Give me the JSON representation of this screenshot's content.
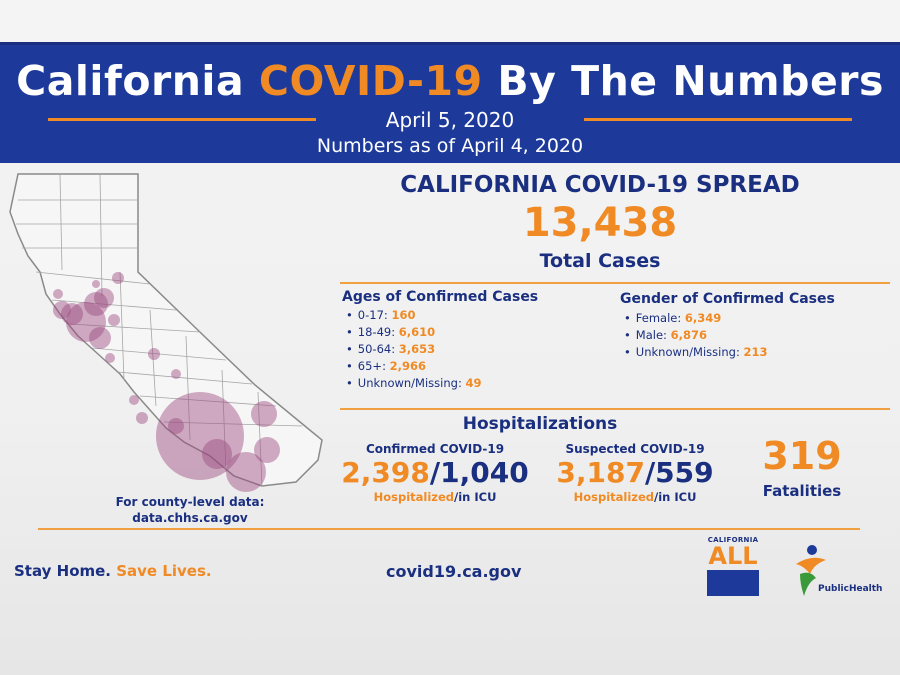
{
  "header": {
    "title_before": "California ",
    "title_accent": "COVID-19",
    "title_after": " By The Numbers",
    "date": "April 5, 2020",
    "as_of": "Numbers as of April 4, 2020"
  },
  "spread": {
    "title": "CALIFORNIA COVID-19 SPREAD",
    "total": "13,438",
    "total_label": "Total Cases"
  },
  "ages": {
    "heading": "Ages of Confirmed Cases",
    "items": [
      {
        "label": "0-17: ",
        "value": "160"
      },
      {
        "label": "18-49: ",
        "value": "6,610"
      },
      {
        "label": "50-64: ",
        "value": "3,653"
      },
      {
        "label": "65+: ",
        "value": "2,966"
      },
      {
        "label": "Unknown/Missing: ",
        "value": "49"
      }
    ]
  },
  "gender": {
    "heading": "Gender of Confirmed Cases",
    "items": [
      {
        "label": "Female: ",
        "value": "6,349"
      },
      {
        "label": "Male: ",
        "value": "6,876"
      },
      {
        "label": "Unknown/Missing: ",
        "value": "213"
      }
    ]
  },
  "hospitalizations": {
    "title": "Hospitalizations",
    "confirmed": {
      "label": "Confirmed COVID-19",
      "hospitalized": "2,398",
      "separator": "/",
      "icu": "1,040",
      "foot_hosp": "Hospitalized",
      "foot_icu": "/in ICU"
    },
    "suspected": {
      "label": "Suspected COVID-19",
      "hospitalized": "3,187",
      "separator": "/",
      "icu": "559",
      "foot_hosp": "Hospitalized",
      "foot_icu": "/in ICU"
    }
  },
  "fatalities": {
    "value": "319",
    "label": "Fatalities"
  },
  "county": {
    "line1": "For county-level data:",
    "line2": "data.chhs.ca.gov"
  },
  "footer": {
    "stay_home": "Stay Home. ",
    "save_lives": "Save Lives.",
    "website": "covid19.ca.gov"
  },
  "logos": {
    "ca_all_top": "CALIFORNIA",
    "ca_all_big": "ALL",
    "cdph_big": "PublicHealth"
  },
  "colors": {
    "navy": "#1a2f80",
    "banner_blue": "#1d3a9a",
    "orange": "#f08a24",
    "bubble": "#9b4a7f"
  }
}
